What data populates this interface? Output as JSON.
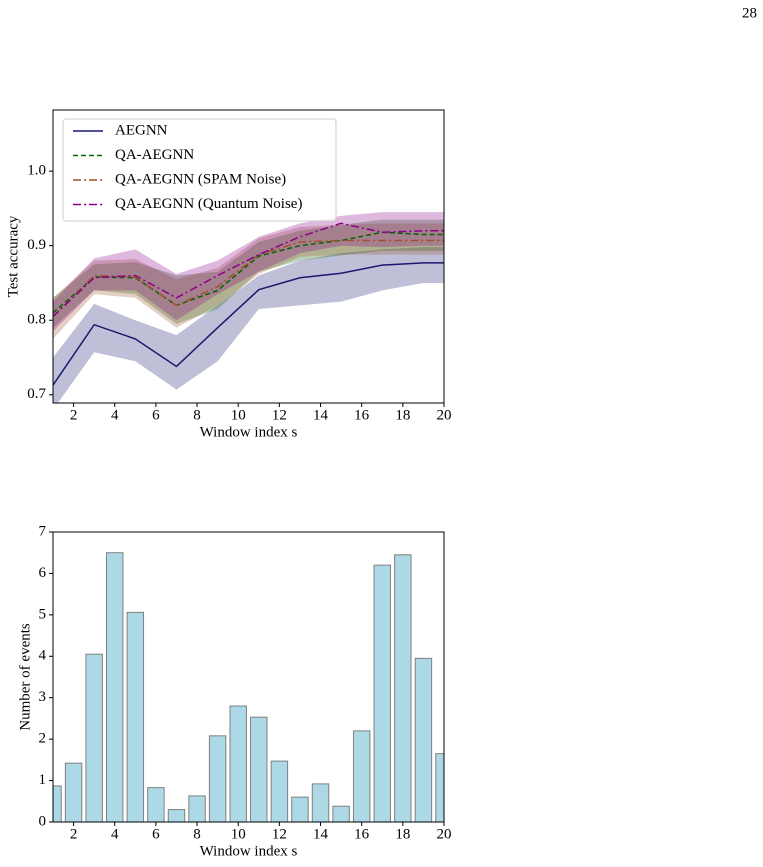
{
  "page_number": "28",
  "chart_data": [
    {
      "type": "line",
      "x_label": "Window index s",
      "y_label": "Test accuracy",
      "x": [
        1,
        3,
        5,
        7,
        9,
        11,
        13,
        15,
        17,
        19,
        20
      ],
      "xlim": [
        1,
        20
      ],
      "xticks": [
        2,
        4,
        6,
        8,
        10,
        12,
        14,
        16,
        18,
        20
      ],
      "ylim": [
        0.689,
        1.082
      ],
      "yticks": [
        0.7,
        0.8,
        0.9,
        {
          "value": 1,
          "label": "1.0"
        }
      ],
      "legend": "upper-left",
      "series": [
        {
          "name": "AEGNN",
          "color": "#191970",
          "dash": "solid",
          "values": [
            0.713,
            0.794,
            0.775,
            0.738,
            0.79,
            0.841,
            0.857,
            0.863,
            0.874,
            0.877,
            0.877
          ],
          "lower": [
            0.68,
            0.757,
            0.745,
            0.707,
            0.745,
            0.815,
            0.82,
            0.825,
            0.84,
            0.85,
            0.85
          ],
          "upper": [
            0.75,
            0.822,
            0.8,
            0.78,
            0.82,
            0.86,
            0.88,
            0.89,
            0.895,
            0.898,
            0.898
          ]
        },
        {
          "name": "QA-AEGNN",
          "color": "#006400",
          "dash": "dashed",
          "values": [
            0.81,
            0.858,
            0.857,
            0.82,
            0.84,
            0.886,
            0.9,
            0.907,
            0.918,
            0.915,
            0.915
          ],
          "lower": [
            0.79,
            0.84,
            0.835,
            0.795,
            0.815,
            0.865,
            0.88,
            0.887,
            0.893,
            0.893,
            0.893
          ],
          "upper": [
            0.83,
            0.875,
            0.878,
            0.86,
            0.865,
            0.905,
            0.92,
            0.928,
            0.935,
            0.935,
            0.935
          ]
        },
        {
          "name": "QA-AEGNN (SPAM Noise)",
          "color": "#a0522d",
          "dash": "dashdot",
          "values": [
            0.805,
            0.86,
            0.858,
            0.82,
            0.845,
            0.888,
            0.905,
            0.907,
            0.907,
            0.907,
            0.907
          ],
          "lower": [
            0.775,
            0.835,
            0.83,
            0.79,
            0.82,
            0.862,
            0.885,
            0.888,
            0.888,
            0.888,
            0.888
          ],
          "upper": [
            0.83,
            0.88,
            0.882,
            0.855,
            0.87,
            0.91,
            0.925,
            0.928,
            0.93,
            0.93,
            0.93
          ]
        },
        {
          "name": "QA-AEGNN (Quantum Noise)",
          "color": "#8b008b",
          "dash": "dashdot",
          "values": [
            0.805,
            0.857,
            0.86,
            0.83,
            0.86,
            0.888,
            0.912,
            0.93,
            0.918,
            0.92,
            0.92
          ],
          "lower": [
            0.785,
            0.84,
            0.84,
            0.8,
            0.835,
            0.865,
            0.89,
            0.9,
            0.898,
            0.9,
            0.9
          ],
          "upper": [
            0.825,
            0.883,
            0.895,
            0.862,
            0.88,
            0.912,
            0.93,
            0.94,
            0.945,
            0.945,
            0.945
          ]
        }
      ]
    },
    {
      "type": "bar",
      "x_label": "Window index s",
      "y_label": "Number of events",
      "x": [
        1,
        2,
        3,
        4,
        5,
        6,
        7,
        8,
        9,
        10,
        11,
        12,
        13,
        14,
        15,
        16,
        17,
        18,
        19,
        20
      ],
      "values": [
        0.87,
        1.42,
        4.05,
        6.5,
        5.06,
        0.83,
        0.3,
        0.63,
        2.08,
        2.8,
        2.53,
        1.47,
        0.6,
        0.92,
        0.38,
        2.2,
        6.2,
        6.45,
        3.95,
        1.65
      ],
      "color": "#add8e6",
      "edgecolor": "#808080",
      "xlim": [
        1,
        20
      ],
      "xticks": [
        2,
        4,
        6,
        8,
        10,
        12,
        14,
        16,
        18,
        20
      ],
      "ylim": [
        0,
        7
      ],
      "yticks": [
        0,
        1,
        2,
        3,
        4,
        5,
        6,
        7
      ]
    }
  ]
}
